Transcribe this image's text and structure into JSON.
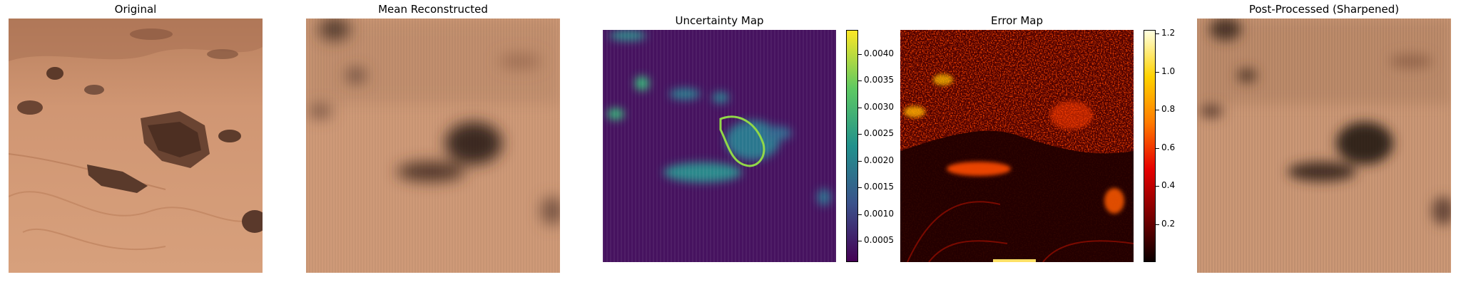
{
  "chart_data": [
    {
      "type": "image",
      "title": "Original",
      "subject": "Martian terrain: sandy dune with scattered rocks"
    },
    {
      "type": "image",
      "title": "Mean Reconstructed",
      "subject": "blurred reconstruction of terrain"
    },
    {
      "type": "heatmap",
      "title": "Uncertainty Map",
      "colormap": "viridis",
      "colorbar": {
        "range": [
          0.0001,
          0.00445
        ],
        "ticks": [
          0.0005,
          0.001,
          0.0015,
          0.002,
          0.0025,
          0.003,
          0.0035,
          0.004
        ],
        "tick_labels": [
          "0.0005",
          "0.0010",
          "0.0015",
          "0.0020",
          "0.0025",
          "0.0030",
          "0.0035",
          "0.0040"
        ]
      }
    },
    {
      "type": "heatmap",
      "title": "Error Map",
      "colormap": "hot",
      "colorbar": {
        "range": [
          0.0,
          1.22
        ],
        "ticks": [
          0.2,
          0.4,
          0.6,
          0.8,
          1.0,
          1.2
        ],
        "tick_labels": [
          "0.2",
          "0.4",
          "0.6",
          "0.8",
          "1.0",
          "1.2"
        ]
      }
    },
    {
      "type": "image",
      "title": "Post-Processed (Sharpened)",
      "subject": "sharpened reconstruction of terrain"
    }
  ],
  "colors": {
    "sand": "#c98f69",
    "sand_light": "#d8a783",
    "rock": "#5a3b2c",
    "viridis_dark": "#440154",
    "viridis_mid": "#21918c",
    "viridis_bright": "#5ec962",
    "hot_dark": "#1a0000",
    "hot_red": "#b40000",
    "hot_yellow": "#ffd200"
  }
}
